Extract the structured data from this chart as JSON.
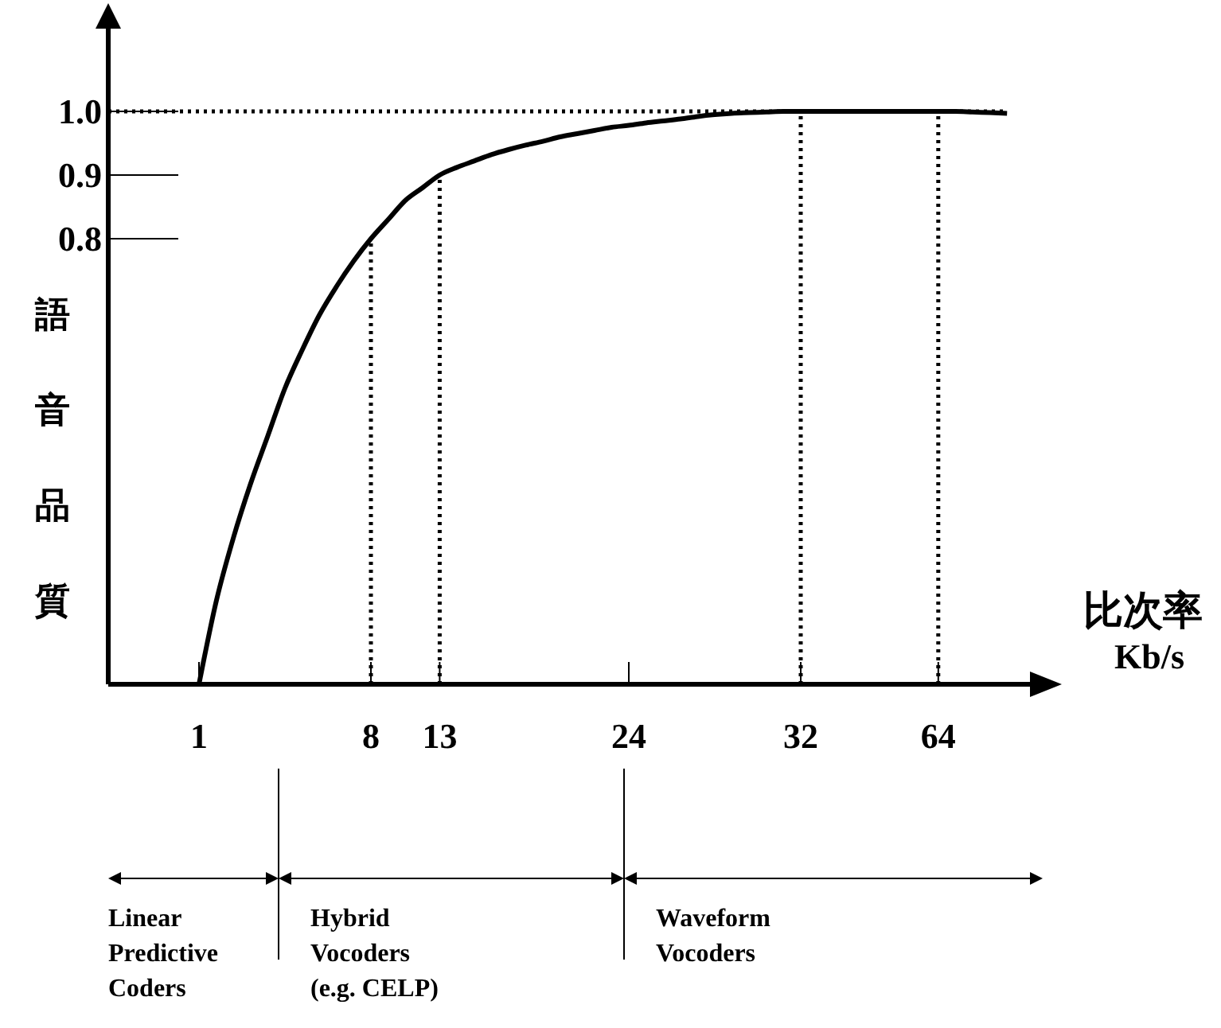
{
  "chart_data": {
    "type": "line",
    "xlabel": "比次率\nKb/s",
    "ylabel": "語音品質",
    "categories": [
      null,
      null,
      null,
      null,
      null,
      "1",
      null,
      null,
      null,
      null,
      null,
      null,
      null,
      null,
      null,
      "8",
      null,
      null,
      null,
      "13",
      null,
      null,
      null,
      null,
      null,
      null,
      null,
      null,
      null,
      null,
      "24",
      null,
      null,
      null,
      null,
      null,
      null,
      null,
      null,
      null,
      "32",
      null,
      null,
      null,
      null,
      null,
      null,
      null,
      "64",
      null,
      null,
      null,
      null,
      null
    ],
    "ylim": [
      0.1,
      1.13
    ],
    "yticks": [
      0.8,
      0.9,
      {
        "value": 1.0,
        "label": "1.0"
      }
    ],
    "line_style": "solid",
    "series": [
      {
        "color": "#000000",
        "values": [
          null,
          null,
          null,
          null,
          null,
          0.1,
          0.23,
          0.33,
          0.415,
          0.49,
          0.565,
          0.625,
          0.68,
          0.725,
          0.765,
          0.8,
          0.83,
          0.86,
          0.88,
          0.9,
          0.912,
          0.922,
          0.932,
          0.94,
          0.947,
          0.953,
          0.96,
          0.965,
          0.97,
          0.975,
          0.978,
          0.982,
          0.985,
          0.988,
          0.992,
          0.995,
          0.997,
          0.998,
          0.999,
          1.0,
          1.0,
          1.0,
          1.0,
          1.0,
          1.0,
          1.0,
          1.0,
          1.0,
          1.0,
          1.0,
          0.999,
          0.998,
          0.997,
          null
        ]
      }
    ],
    "ref_lines": [
      {
        "axis": "y",
        "value": 1.0,
        "line_style": "dotted"
      },
      {
        "axis": "x",
        "value": "8",
        "line_style": "dotted"
      },
      {
        "axis": "x",
        "value": "13",
        "line_style": "dotted"
      },
      {
        "axis": "x",
        "value": "32",
        "line_style": "dotted"
      },
      {
        "axis": "x",
        "value": "64",
        "line_style": "dotted"
      }
    ],
    "annotations": [
      "Linear\nPredictive\nCoders",
      "Hybrid\nVocoders\n(e.g. CELP)",
      "Waveform\nVocoders"
    ]
  }
}
